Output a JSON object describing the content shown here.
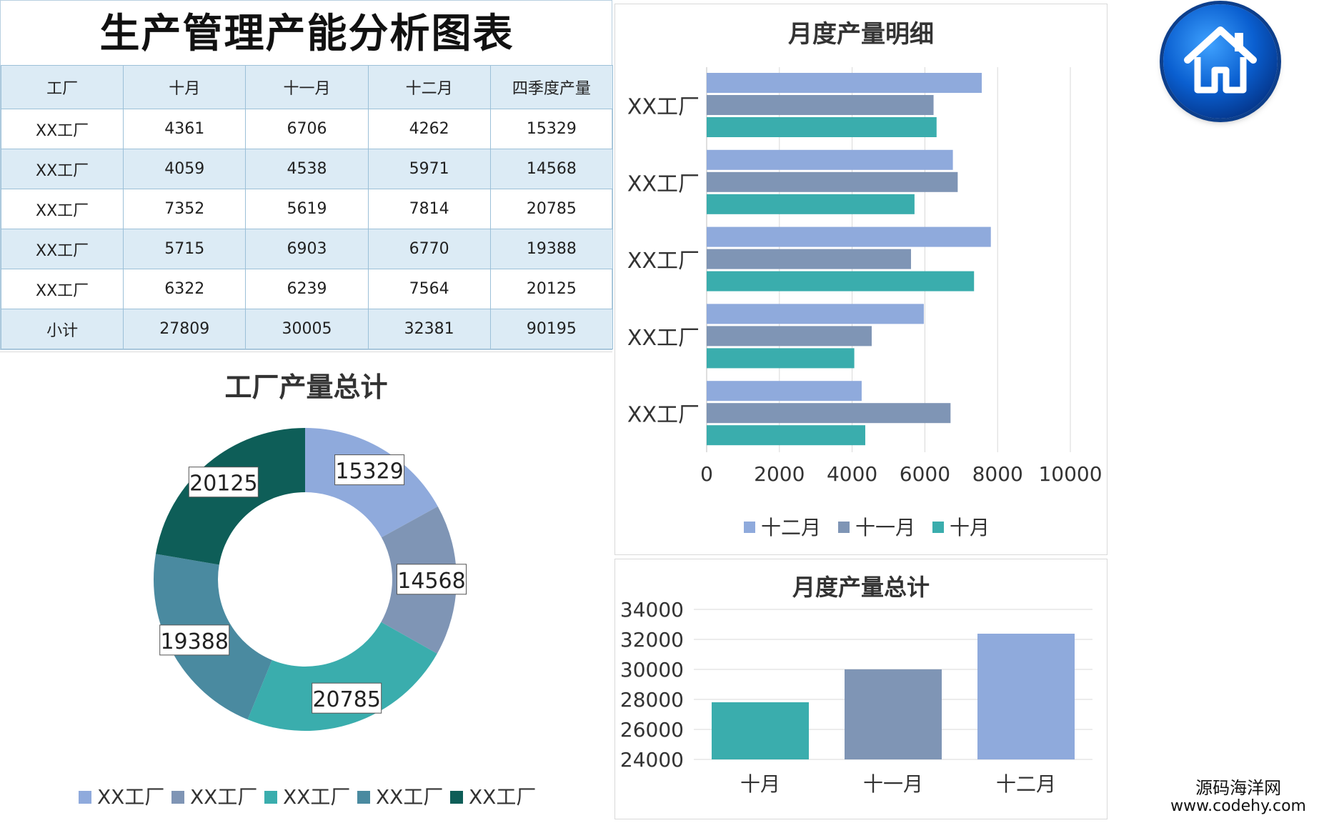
{
  "title": "生产管理产能分析图表",
  "table": {
    "headers": [
      "工厂",
      "十月",
      "十一月",
      "十二月",
      "四季度产量"
    ],
    "rows": [
      [
        "XX工厂",
        "4361",
        "6706",
        "4262",
        "15329"
      ],
      [
        "XX工厂",
        "4059",
        "4538",
        "5971",
        "14568"
      ],
      [
        "XX工厂",
        "7352",
        "5619",
        "7814",
        "20785"
      ],
      [
        "XX工厂",
        "5715",
        "6903",
        "6770",
        "19388"
      ],
      [
        "XX工厂",
        "6322",
        "6239",
        "7564",
        "20125"
      ],
      [
        "小计",
        "27809",
        "30005",
        "32381",
        "90195"
      ]
    ]
  },
  "colors": {
    "dec": "#8faadc",
    "nov": "#7f95b5",
    "oct": "#3aadad",
    "donut": [
      "#8faadc",
      "#7f95b5",
      "#3aadad",
      "#4a8aa0",
      "#0e5e58"
    ],
    "table_header_bg": "#dcebf5",
    "home_badge": "#0a5fd0"
  },
  "chart_data": [
    {
      "id": "donut",
      "type": "pie",
      "title": "工厂产量总计",
      "categories": [
        "XX工厂",
        "XX工厂",
        "XX工厂",
        "XX工厂",
        "XX工厂"
      ],
      "values": [
        15329,
        14568,
        20785,
        19388,
        20125
      ],
      "legend": "bottom"
    },
    {
      "id": "hbar",
      "type": "bar",
      "orientation": "horizontal",
      "title": "月度产量明细",
      "categories": [
        "XX工厂",
        "XX工厂",
        "XX工厂",
        "XX工厂",
        "XX工厂"
      ],
      "series": [
        {
          "name": "十二月",
          "values": [
            7564,
            6770,
            7814,
            5971,
            4262
          ]
        },
        {
          "name": "十一月",
          "values": [
            6239,
            6903,
            5619,
            4538,
            6706
          ]
        },
        {
          "name": "十月",
          "values": [
            6322,
            5715,
            7352,
            4059,
            4361
          ]
        }
      ],
      "xlim": [
        0,
        10000
      ],
      "xticks": [
        "0",
        "2000",
        "4000",
        "6000",
        "8000",
        "10000"
      ],
      "grid": true,
      "legend": "bottom"
    },
    {
      "id": "col",
      "type": "bar",
      "title": "月度产量总计",
      "categories": [
        "十月",
        "十一月",
        "十二月"
      ],
      "values": [
        27809,
        30005,
        32381
      ],
      "ylim": [
        24000,
        34000
      ],
      "yticks": [
        "24000",
        "26000",
        "28000",
        "30000",
        "32000",
        "34000"
      ],
      "grid": true
    }
  ],
  "home": {
    "icon": "home-icon"
  },
  "watermark": {
    "line1": "源码海洋网",
    "line2": "www.codehy.com"
  }
}
